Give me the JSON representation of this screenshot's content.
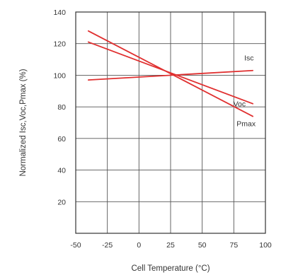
{
  "chart_data": {
    "type": "line",
    "title": "",
    "xlabel": "Cell Temperature (°C)",
    "ylabel": "Normalized Isc,Voc,Pmax (%)",
    "xlim": [
      -50,
      100
    ],
    "ylim": [
      0,
      140
    ],
    "xticks": [
      -50,
      -25,
      0,
      25,
      50,
      75,
      100
    ],
    "yticks": [
      20,
      40,
      60,
      80,
      100,
      120,
      140
    ],
    "xtick_labels": [
      "-50",
      "-25",
      "0",
      "25",
      "50",
      "75",
      "100"
    ],
    "ytick_labels": [
      "20",
      "40",
      "60",
      "80",
      "100",
      "120",
      "140"
    ],
    "grid": true,
    "legend": "inline labels at line ends",
    "line_color": "#e03030",
    "series": [
      {
        "name": "Isc",
        "x": [
          -40,
          90
        ],
        "y": [
          97,
          103
        ]
      },
      {
        "name": "Voc",
        "x": [
          -40,
          90
        ],
        "y": [
          121,
          82
        ]
      },
      {
        "name": "Pmax",
        "x": [
          -40,
          90
        ],
        "y": [
          128,
          74
        ]
      }
    ]
  }
}
